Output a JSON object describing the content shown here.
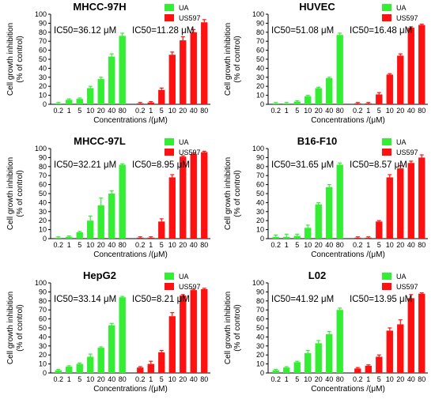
{
  "figure": {
    "colors": {
      "UA": "#33ee33",
      "US597": "#ff1111",
      "axis": "#000000"
    }
  },
  "chart_data": [
    {
      "type": "bar",
      "title": "MHCC-97H",
      "ylabel_line1": "Cell growth inhibition",
      "ylabel_line2": "(% of control)",
      "xlabel": "Concentrations /(μM)",
      "categories": [
        "0.2",
        "1",
        "5",
        "10",
        "20",
        "40",
        "80"
      ],
      "ylim": [
        0,
        100
      ],
      "yticks": [
        0,
        10,
        20,
        30,
        40,
        50,
        60,
        70,
        80,
        90,
        100
      ],
      "legend": [
        "UA",
        "US597"
      ],
      "legend_position": "top-right",
      "annotations": [
        "IC50=36.12 μM",
        "IC50=11.28 μM"
      ],
      "series": [
        {
          "name": "UA",
          "values": [
            1,
            5,
            6,
            18,
            28,
            53,
            76
          ],
          "errors": [
            1,
            1,
            1,
            2,
            2,
            3,
            3
          ]
        },
        {
          "name": "US597",
          "values": [
            1,
            2,
            16,
            55,
            71,
            80,
            91
          ],
          "errors": [
            1,
            1,
            2,
            3,
            4,
            3,
            3
          ]
        }
      ]
    },
    {
      "type": "bar",
      "title": "HUVEC",
      "ylabel_line1": "Cell growth inhibition",
      "ylabel_line2": "(% of control)",
      "xlabel": "Concentrations /(μM)",
      "categories": [
        "0.2",
        "1",
        "5",
        "10",
        "20",
        "40",
        "80"
      ],
      "ylim": [
        0,
        100
      ],
      "yticks": [
        0,
        10,
        20,
        30,
        40,
        50,
        60,
        70,
        80,
        90,
        100
      ],
      "legend": [
        "UA",
        "US597"
      ],
      "legend_position": "top-right",
      "annotations": [
        "IC50=51.08 μM",
        "IC50=16.48 μM"
      ],
      "series": [
        {
          "name": "UA",
          "values": [
            1,
            1,
            3,
            9,
            18,
            29,
            77
          ],
          "errors": [
            1,
            1,
            1,
            1,
            1,
            1,
            2
          ]
        },
        {
          "name": "US597",
          "values": [
            1,
            1,
            11,
            33,
            54,
            85,
            88
          ],
          "errors": [
            1,
            1,
            2,
            1,
            2,
            1,
            1
          ]
        }
      ]
    },
    {
      "type": "bar",
      "title": "MHCC-97L",
      "ylabel_line1": "Cell growth inhibition",
      "ylabel_line2": "(% of control)",
      "xlabel": "Concentrations /(μM)",
      "categories": [
        "0.2",
        "1",
        "5",
        "10",
        "20",
        "40",
        "80"
      ],
      "ylim": [
        0,
        100
      ],
      "yticks": [
        0,
        10,
        20,
        30,
        40,
        50,
        60,
        70,
        80,
        90,
        100
      ],
      "legend": [
        "UA",
        "US597"
      ],
      "legend_position": "top-right",
      "annotations": [
        "IC50=32.21 μM",
        "IC50=8.95 μM"
      ],
      "series": [
        {
          "name": "UA",
          "values": [
            1,
            2,
            7,
            20,
            37,
            50,
            82
          ],
          "errors": [
            1,
            1,
            1,
            5,
            8,
            3,
            1
          ]
        },
        {
          "name": "US597",
          "values": [
            1,
            1,
            19,
            68,
            91,
            94,
            96
          ],
          "errors": [
            1,
            1,
            3,
            3,
            1,
            1,
            1
          ]
        }
      ]
    },
    {
      "type": "bar",
      "title": "B16-F10",
      "ylabel_line1": "Cell growth inhibition",
      "ylabel_line2": "(% of control)",
      "xlabel": "Concentrations /(μM)",
      "categories": [
        "0.2",
        "1",
        "5",
        "10",
        "20",
        "40",
        "80"
      ],
      "ylim": [
        0,
        100
      ],
      "yticks": [
        0,
        10,
        20,
        30,
        40,
        50,
        60,
        70,
        80,
        90,
        100
      ],
      "legend": [
        "UA",
        "US597"
      ],
      "legend_position": "top-right",
      "annotations": [
        "IC50=31.65 μM",
        "IC50=8.57 μM"
      ],
      "series": [
        {
          "name": "UA",
          "values": [
            2,
            2,
            3,
            12,
            38,
            57,
            82
          ],
          "errors": [
            2,
            3,
            2,
            3,
            2,
            3,
            2
          ]
        },
        {
          "name": "US597",
          "values": [
            1,
            1,
            19,
            68,
            78,
            84,
            90
          ],
          "errors": [
            1,
            1,
            1,
            3,
            3,
            2,
            3
          ]
        }
      ]
    },
    {
      "type": "bar",
      "title": "HepG2",
      "ylabel_line1": "Cell growth inhibition",
      "ylabel_line2": "(% of control)",
      "xlabel": "Concentrations /(μM)",
      "categories": [
        "0.2",
        "1",
        "5",
        "10",
        "20",
        "40",
        "80"
      ],
      "ylim": [
        0,
        100
      ],
      "yticks": [
        0,
        10,
        20,
        30,
        40,
        50,
        60,
        70,
        80,
        90,
        100
      ],
      "legend": [
        "UA",
        "US597"
      ],
      "legend_position": "top-right",
      "annotations": [
        "IC50=33.14 μM",
        "IC50=8.21 μM"
      ],
      "series": [
        {
          "name": "UA",
          "values": [
            3,
            7,
            10,
            18,
            28,
            53,
            84
          ],
          "errors": [
            1,
            1,
            1,
            3,
            1,
            2,
            1
          ]
        },
        {
          "name": "US597",
          "values": [
            6,
            10,
            23,
            63,
            86,
            92,
            93
          ],
          "errors": [
            1,
            3,
            2,
            4,
            1,
            1,
            1
          ]
        }
      ]
    },
    {
      "type": "bar",
      "title": "L02",
      "ylabel_line1": "Cell growth inhibition",
      "ylabel_line2": "(% of control)",
      "xlabel": "Concentrations /(μM)",
      "categories": [
        "0.2",
        "1",
        "5",
        "10",
        "20",
        "40",
        "80"
      ],
      "ylim": [
        0,
        100
      ],
      "yticks": [
        0,
        10,
        20,
        30,
        40,
        50,
        60,
        70,
        80,
        90,
        100
      ],
      "legend": [
        "UA",
        "US597"
      ],
      "legend_position": "top-right",
      "annotations": [
        "IC50=41.92 μM",
        "IC50=13.95 μM"
      ],
      "series": [
        {
          "name": "UA",
          "values": [
            3,
            6,
            12,
            22,
            33,
            43,
            70
          ],
          "errors": [
            1,
            1,
            1,
            3,
            3,
            3,
            2
          ]
        },
        {
          "name": "US597",
          "values": [
            5,
            8,
            18,
            47,
            54,
            83,
            88
          ],
          "errors": [
            1,
            1,
            2,
            3,
            5,
            4,
            1
          ]
        }
      ]
    }
  ]
}
